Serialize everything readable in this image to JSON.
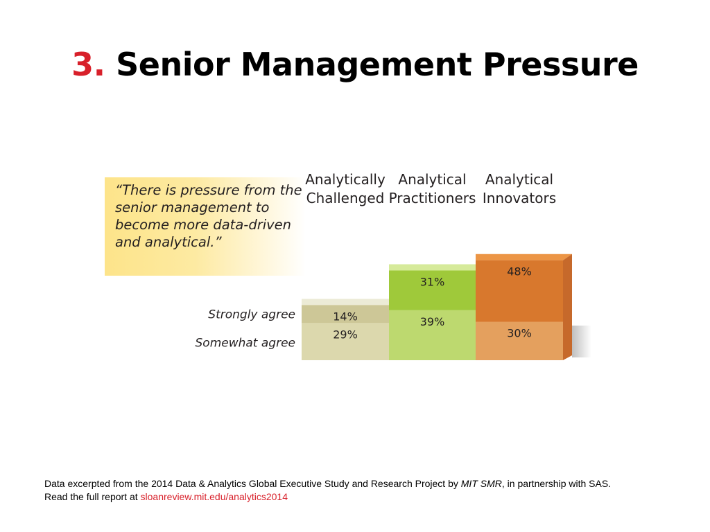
{
  "title": {
    "number": "3.",
    "text": "Senior Management Pressure"
  },
  "quote": "“There is pressure from the senior management to become more data-driven and analytical.”",
  "chart_data": {
    "type": "bar",
    "stacked": true,
    "categories": [
      "Analytically Challenged",
      "Analytical Practitioners",
      "Analytical Innovators"
    ],
    "category_label_lines": [
      [
        "Analytically",
        "Challenged"
      ],
      [
        "Analytical",
        "Practitioners"
      ],
      [
        "Analytical",
        "Innovators"
      ]
    ],
    "series": [
      {
        "name": "Somewhat agree",
        "values": [
          29,
          39,
          30
        ]
      },
      {
        "name": "Strongly agree",
        "values": [
          14,
          31,
          48
        ]
      }
    ],
    "value_suffix": "%",
    "colors": {
      "Somewhat agree": [
        "#dcd8ad",
        "#bdd96f",
        "#e4a05e"
      ],
      "Strongly agree": [
        "#cdc797",
        "#9fc93a",
        "#d8782d"
      ]
    },
    "top_face_colors": [
      "#ecebd6",
      "#d6ea9a",
      "#ec9545"
    ],
    "side_color": "#c6692b",
    "title": "",
    "xlabel": "",
    "ylabel": "",
    "grid": false,
    "legend": "left"
  },
  "footer": {
    "line1_a": "Data excerpted from the 2014 Data & Analytics Global Executive Study and Research Project by ",
    "line1_b": "MIT SMR",
    "line1_c": ", in partnership with SAS.",
    "line2_a": "Read the full report at ",
    "link": "sloanreview.mit.edu/analytics2014"
  }
}
